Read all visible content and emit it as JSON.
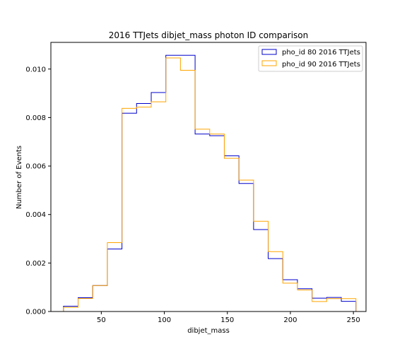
{
  "chart_data": {
    "type": "histogram",
    "title": "2016 TTJets dibjet_mass photon ID comparison",
    "xlabel": "dibjet_mass",
    "ylabel": "Number of Events",
    "xlim": [
      10,
      260
    ],
    "ylim": [
      0,
      0.0111
    ],
    "xticks": [
      50,
      100,
      150,
      200,
      250
    ],
    "yticks": [
      0.0,
      0.002,
      0.004,
      0.006,
      0.008,
      0.01
    ],
    "ytick_labels": [
      "0.000",
      "0.002",
      "0.004",
      "0.006",
      "0.008",
      "0.010"
    ],
    "grid": false,
    "legend_position": "top-right",
    "bin_edges": [
      20,
      31.6,
      43.2,
      54.8,
      66.4,
      78,
      89.6,
      101.2,
      112.8,
      124.4,
      136,
      147.6,
      159.2,
      170.8,
      182.4,
      194,
      205.6,
      217.2,
      228.8,
      240.4,
      252
    ],
    "series": [
      {
        "name": "pho_id 80 2016 TTJets",
        "color": "#0000cc",
        "values": [
          0.00022,
          0.00057,
          0.00107,
          0.00258,
          0.00818,
          0.00858,
          0.00903,
          0.01057,
          0.01057,
          0.00732,
          0.00725,
          0.00642,
          0.00528,
          0.00338,
          0.00218,
          0.00131,
          0.00094,
          0.00055,
          0.00058,
          0.00042
        ]
      },
      {
        "name": "pho_id 90 2016 TTJets",
        "color": "#ffa500",
        "values": [
          0.00017,
          0.00054,
          0.00107,
          0.00284,
          0.00838,
          0.00843,
          0.00865,
          0.01046,
          0.00995,
          0.00752,
          0.00732,
          0.00632,
          0.00542,
          0.00372,
          0.00247,
          0.00117,
          0.00089,
          0.00041,
          0.00053,
          0.00053
        ]
      }
    ]
  }
}
